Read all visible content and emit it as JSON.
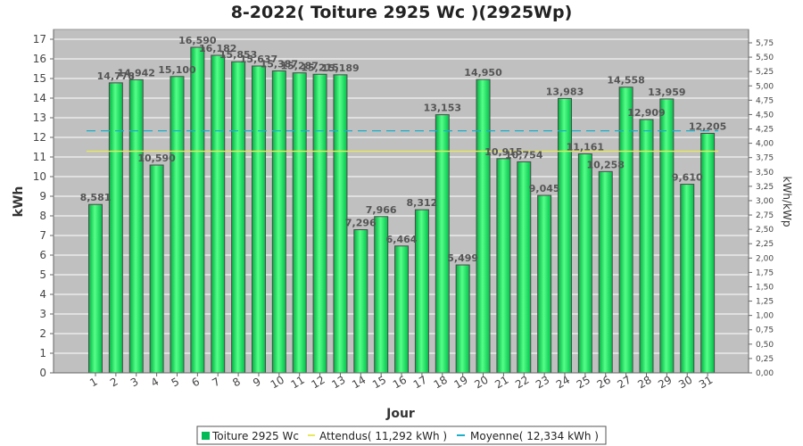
{
  "chart_data": {
    "type": "bar",
    "title": "8-2022( Toiture 2925 Wc )(2925Wp)",
    "xlabel": "Jour",
    "ylabel": "kWh",
    "ylabel_right": "kWh/kWp",
    "ylim": [
      0,
      17.5
    ],
    "ylim_right": [
      0,
      5.983
    ],
    "yticks": [
      0,
      1,
      2,
      3,
      4,
      5,
      6,
      7,
      8,
      9,
      10,
      11,
      12,
      13,
      14,
      15,
      16,
      17
    ],
    "yticks_right": [
      "0,00",
      "0,25",
      "0,50",
      "0,75",
      "1,00",
      "1,25",
      "1,50",
      "1,75",
      "2,00",
      "2,25",
      "2,50",
      "2,75",
      "3,00",
      "3,25",
      "3,50",
      "3,75",
      "4,00",
      "4,25",
      "4,50",
      "4,75",
      "5,00",
      "5,25",
      "5,50",
      "5,75"
    ],
    "categories": [
      "1",
      "2",
      "3",
      "4",
      "5",
      "6",
      "7",
      "8",
      "9",
      "10",
      "11",
      "12",
      "13",
      "14",
      "15",
      "16",
      "17",
      "18",
      "19",
      "20",
      "21",
      "22",
      "23",
      "24",
      "25",
      "26",
      "27",
      "28",
      "29",
      "30",
      "31"
    ],
    "values": [
      8.581,
      14.778,
      14.942,
      10.59,
      15.1,
      16.59,
      16.182,
      15.853,
      15.637,
      15.387,
      15.287,
      15.215,
      15.189,
      7.296,
      7.966,
      6.464,
      8.312,
      13.153,
      5.499,
      14.95,
      10.915,
      10.754,
      9.045,
      13.983,
      11.161,
      10.258,
      14.558,
      12.909,
      13.959,
      9.61,
      12.205
    ],
    "data_labels": [
      "8,581",
      "14,778",
      "14,942",
      "10,590",
      "15,100",
      "16,590",
      "16,182",
      "15,853",
      "15,637",
      "15,387",
      "15,287",
      "15,215",
      "15,189",
      "7,296",
      "7,966",
      "6,464",
      "8,312",
      "13,153",
      "5,499",
      "14,950",
      "10,915",
      "10,754",
      "9,045",
      "13,983",
      "11,161",
      "10,258",
      "14,558",
      "12,909",
      "13,959",
      "9,610",
      "12,205"
    ],
    "reference_lines": [
      {
        "name": "Attendus( 11,292 kWh )",
        "value": 11.292,
        "color": "#e8e85a",
        "style": "solid"
      },
      {
        "name": "Moyenne( 12,334 kWh )",
        "value": 12.334,
        "color": "#1ab0c8",
        "style": "dashed"
      }
    ],
    "series": [
      {
        "name": "Toiture 2925 Wc",
        "color": "#00cc55"
      }
    ],
    "grid": true,
    "legend_position": "bottom"
  }
}
